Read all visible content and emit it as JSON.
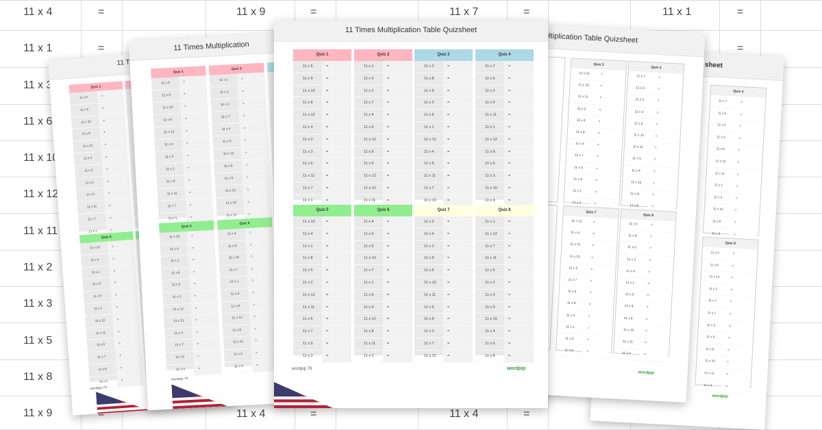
{
  "background_grid": {
    "col1": [
      "11 x 4",
      "11 x 1",
      "11 x 3",
      "11 x 6",
      "11 x 10",
      "11 x 12",
      "11 x 11",
      "11 x 2",
      "11 x 3",
      "11 x 5",
      "11 x 8",
      "11 x 9"
    ],
    "top_items": [
      "=",
      "11 x 9",
      "=",
      "11 x 7",
      "=",
      "11 x 1",
      "="
    ],
    "right_eq": [
      "=",
      "=",
      "=",
      "=",
      "=",
      "=",
      "=",
      "=",
      "=",
      "="
    ],
    "bottom_items": [
      "=",
      "11 x 4",
      "=",
      "11 x 4",
      "="
    ]
  },
  "sheet": {
    "title": "11 Times Multiplication Table Quizsheet",
    "footer": "wordpip 79",
    "brand": "wordpip",
    "quizzes": [
      {
        "name": "Quiz 1",
        "color": "#ffb6c1",
        "items": [
          "11 x 5",
          "11 x 9",
          "11 x 10",
          "11 x 8",
          "11 x 12",
          "11 x 4",
          "11 x 2",
          "11 x 3",
          "11 x 6",
          "11 x 11",
          "11 x 7",
          "11 x 1"
        ]
      },
      {
        "name": "Quiz 2",
        "color": "#ffb6c1",
        "items": [
          "11 x 1",
          "11 x 3",
          "11 x 2",
          "11 x 7",
          "11 x 4",
          "11 x 6",
          "11 x 12",
          "11 x 9",
          "11 x 5",
          "11 x 12",
          "11 x 10",
          "11 x 11"
        ]
      },
      {
        "name": "Quiz 3",
        "color": "#add8e6",
        "items": [
          "11 x 2",
          "11 x 8",
          "11 x 9",
          "11 x 3",
          "11 x 6",
          "11 x 1",
          "11 x 12",
          "11 x 4",
          "11 x 5",
          "11 x 11",
          "11 x 7",
          "11 x 10"
        ]
      },
      {
        "name": "Quiz 4",
        "color": "#add8e6",
        "items": [
          "11 x 7",
          "11 x 6",
          "11 x 2",
          "11 x 9",
          "11 x 11",
          "11 x 1",
          "11 x 12",
          "11 x 8",
          "11 x 5",
          "11 x 3",
          "11 x 10",
          "11 x 4"
        ]
      },
      {
        "name": "Quiz 5",
        "color": "#90ee90",
        "items": [
          "11 x 10",
          "11 x 4",
          "11 x 1",
          "11 x 8",
          "11 x 5",
          "11 x 2",
          "11 x 12",
          "11 x 11",
          "11 x 6",
          "11 x 7",
          "11 x 9",
          "11 x 3"
        ]
      },
      {
        "name": "Quiz 6",
        "color": "#90ee90",
        "items": [
          "11 x 4",
          "11 x 5",
          "11 x 5",
          "11 x 10",
          "11 x 7",
          "11 x 1",
          "11 x 6",
          "11 x 9",
          "11 x 12",
          "11 x 8",
          "11 x 11",
          "11 x 2"
        ]
      },
      {
        "name": "Quiz 7",
        "color": "#ffffe0",
        "items": [
          "11 x 2",
          "11 x 4",
          "11 x 1",
          "11 x 9",
          "11 x 6",
          "11 x 10",
          "11 x 11",
          "11 x 5",
          "11 x 8",
          "11 x 3",
          "11 x 7",
          "11 x 12"
        ]
      },
      {
        "name": "Quiz 8",
        "color": "#ffffe0",
        "items": [
          "11 x 1",
          "11 x 12",
          "11 x 7",
          "11 x 11",
          "11 x 5",
          "11 x 2",
          "11 x 3",
          "11 x 9",
          "11 x 10",
          "11 x 4",
          "11 x 6",
          "11 x 8"
        ]
      }
    ]
  },
  "left_sheets": {
    "back_title": "11 Times",
    "mid_title": "11 Times Multiplication",
    "back_q1": "Quiz 1",
    "back_q5": "Quiz 5",
    "mid_q1": "Quiz 1",
    "mid_q2": "Quiz 2",
    "mid_q5": "Quiz 5",
    "mid_q6": "Quiz 6",
    "back_items_top": [
      "11 x 5",
      "11 x 9",
      "11 x 10",
      "11 x 8",
      "11 x 12",
      "11 x 4",
      "11 x 2",
      "11 x 3",
      "11 x 6",
      "11 x 11",
      "11 x 7",
      "11 x 1"
    ],
    "back_items_bot": [
      "11 x 10",
      "11 x 4",
      "11 x 1",
      "11 x 8",
      "11 x 5",
      "11 x 2",
      "11 x 12",
      "11 x 11",
      "11 x 6",
      "11 x 7",
      "11 x 9",
      "11 x 3"
    ],
    "mid_items_q1": [
      "11 x 5",
      "11 x 9",
      "11 x 10",
      "11 x 8",
      "11 x 12",
      "11 x 4",
      "11 x 2",
      "11 x 3",
      "11 x 6",
      "11 x 11",
      "11 x 7",
      "11 x 1"
    ],
    "mid_items_q2": [
      "11 x 1",
      "11 x 3",
      "11 x 2",
      "11 x 7",
      "11 x 4",
      "11 x 6",
      "11 x 12",
      "11 x 9",
      "11 x 5",
      "11 x 12",
      "11 x 10",
      "11 x 11"
    ],
    "mid_items_q5": [
      "11 x 10",
      "11 x 4",
      "11 x 1",
      "11 x 8",
      "11 x 5",
      "11 x 2",
      "11 x 12",
      "11 x 11",
      "11 x 4",
      "11 x 7",
      "11 x 9",
      "11 x 3"
    ],
    "mid_items_q6": [
      "11 x 4",
      "11 x 5",
      "11 x 10",
      "11 x 7",
      "11 x 1",
      "11 x 6",
      "11 x 9",
      "11 x 12",
      "11 x 8",
      "11 x 11",
      "11 x 2",
      "11 x 2"
    ],
    "footer": "wordpip 79"
  },
  "right_sheets": {
    "mid_title": "ultiplication Table Quizsheet",
    "back_title": "sheet",
    "mid_q3": "Quiz 3",
    "mid_q4": "Quiz 4",
    "mid_q7": "Quiz 7",
    "mid_q8": "Quiz 8",
    "back_q4": "Quiz 4",
    "back_q8": "Quiz 8",
    "mid_items_q3": [
      "11 x 12",
      "11 x 10",
      "11 x 11",
      "11 x 3",
      "11 x 6",
      "11 x 8",
      "11 x 4",
      "11 x 7",
      "11 x 5",
      "11 x 9",
      "11 x 1",
      "11 x 2"
    ],
    "mid_items_q4": [
      "11 x 7",
      "11 x 3",
      "11 x 2",
      "11 x 3",
      "11 x 8",
      "11 x 12",
      "11 x 11",
      "11 x 5",
      "11 x 4",
      "11 x 10",
      "11 x 8",
      "11 x 9"
    ],
    "mid_items_q7": [
      "11 x 12",
      "11 x 4",
      "11 x 11",
      "11 x 10",
      "11 x 3",
      "11 x 7",
      "11 x 6",
      "11 x 9",
      "11 x 2",
      "11 x 1",
      "11 x 5",
      "11 x 8"
    ],
    "mid_items_q8": [
      "11 x 5",
      "11 x 8",
      "11 x 6",
      "11 x 2",
      "11 x 4",
      "11 x 1",
      "11 x 3",
      "11 x 9",
      "11 x 8",
      "11 x 10",
      "11 x 11",
      "11 x 4"
    ],
    "back_items_q4": [
      "11 x 7",
      "11 x 5",
      "11 x 2",
      "11 x 3",
      "11 x 6",
      "11 x 12",
      "11 x 11",
      "11 x 1",
      "11 x 4",
      "11 x 10",
      "11 x 8",
      "11 x 9"
    ],
    "back_items_q8": [
      "11 x 5",
      "11 x 8",
      "11 x 12",
      "11 x 2",
      "11 x 7",
      "11 x 1",
      "11 x 3",
      "11 x 9",
      "11 x 6",
      "11 x 10",
      "11 x 11",
      "11 x 4"
    ],
    "brand": "wordpip"
  },
  "colors": {
    "pink": "#ffb6c1",
    "blue": "#add8e6",
    "green": "#90ee90",
    "yellow": "#ffffe0"
  }
}
